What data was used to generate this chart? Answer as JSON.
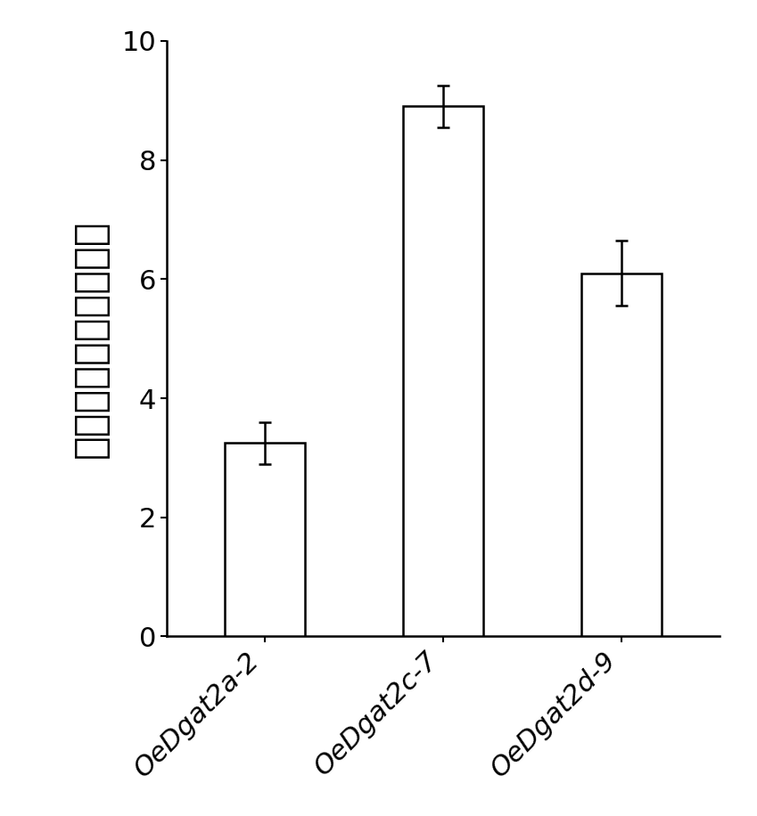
{
  "categories": [
    "OeDgat2a-2",
    "OeDgat2c-7",
    "OeDgat2d-9"
  ],
  "values": [
    3.25,
    8.9,
    6.1
  ],
  "errors": [
    0.35,
    0.35,
    0.55
  ],
  "bar_color": "#ffffff",
  "bar_edgecolor": "#000000",
  "bar_linewidth": 1.8,
  "errorbar_color": "#000000",
  "errorbar_linewidth": 1.8,
  "errorbar_capsize": 5,
  "ylabel": "相比对照组的上调倍数",
  "ylim": [
    0,
    10
  ],
  "yticks": [
    0,
    2,
    4,
    6,
    8,
    10
  ],
  "bar_width": 0.45,
  "background_color": "#ffffff",
  "ylabel_fontsize": 32,
  "tick_fontsize": 22,
  "xtick_fontsize": 22,
  "figsize": [
    8.49,
    9.16
  ],
  "dpi": 100
}
